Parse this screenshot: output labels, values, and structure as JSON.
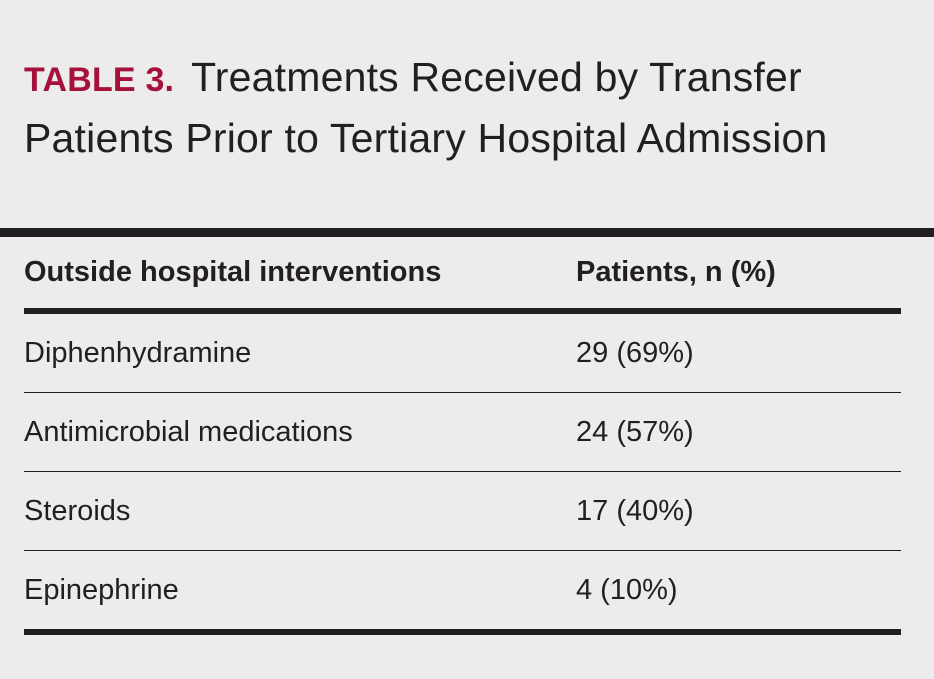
{
  "table": {
    "label": "TABLE 3.",
    "title": "Treatments Received by Transfer Patients Prior to Tertiary Hospital Admission",
    "columns": [
      "Outside hospital interventions",
      "Patients, n (%)"
    ],
    "rows": [
      [
        "Diphenhydramine",
        "29 (69%)"
      ],
      [
        "Antimicrobial medications",
        "24 (57%)"
      ],
      [
        "Steroids",
        "17 (40%)"
      ],
      [
        "Epinephrine",
        "4 (10%)"
      ]
    ]
  },
  "colors": {
    "label": "#a6113b",
    "text": "#231f20",
    "background": "#ececec"
  }
}
